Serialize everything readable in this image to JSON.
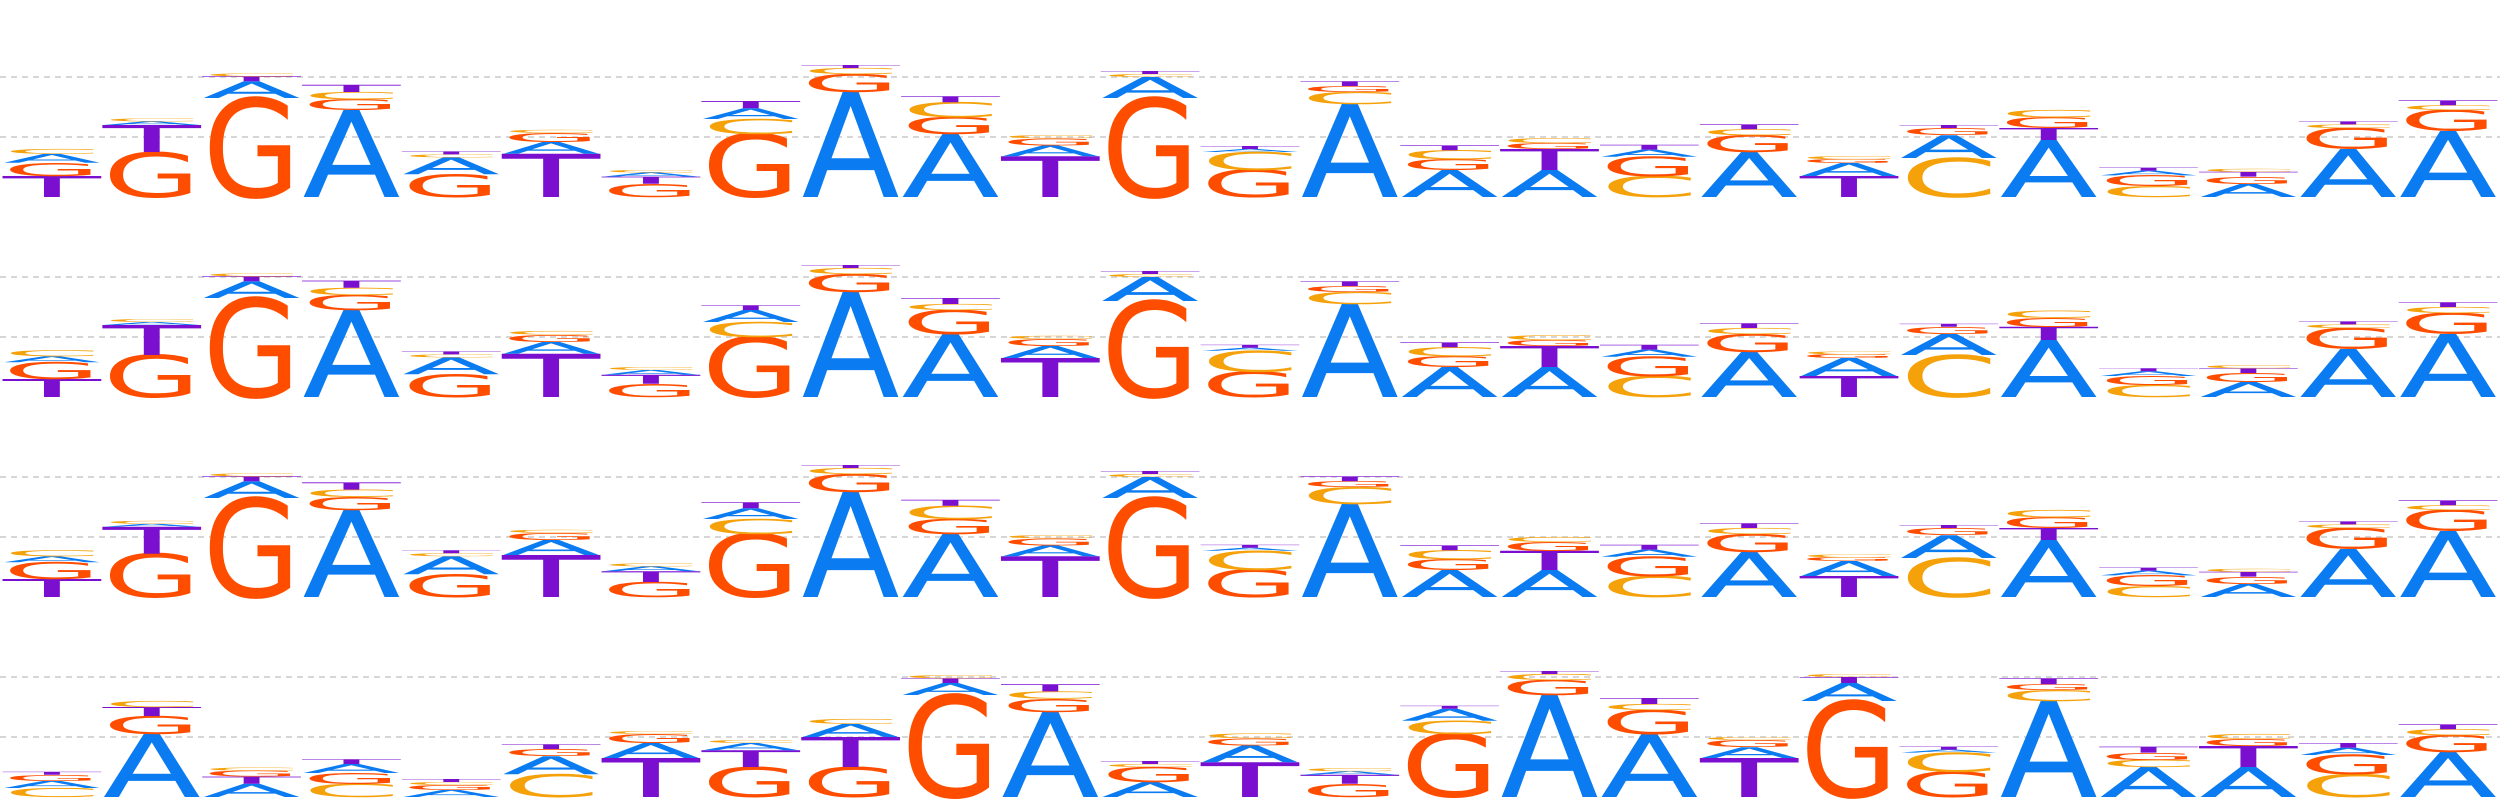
{
  "colors": {
    "A": "#0a7bf0",
    "C": "#f5a10a",
    "G": "#ff4d00",
    "T": "#7a0fd0",
    "grid": "#c8c8c8",
    "background": "#ffffff"
  },
  "chart_data": {
    "type": "sequence_logo",
    "alphabet": [
      "A",
      "C",
      "G",
      "T"
    ],
    "ylim": [
      0,
      2
    ],
    "grid": true,
    "rows": [
      {
        "name": "",
        "positions": [
          {
            "A": 0.15,
            "C": 0.08,
            "G": 0.22,
            "T": 0.35
          },
          {
            "A": 0.06,
            "C": 0.05,
            "G": 0.75,
            "T": 0.45
          },
          {
            "A": 0.28,
            "C": 0.05,
            "G": 1.65,
            "T": 0.08
          },
          {
            "A": 1.45,
            "C": 0.12,
            "G": 0.18,
            "T": 0.12
          },
          {
            "A": 0.28,
            "C": 0.05,
            "G": 0.38,
            "T": 0.05
          },
          {
            "A": 0.2,
            "C": 0.05,
            "G": 0.15,
            "T": 0.72
          },
          {
            "A": 0.07,
            "C": 0.04,
            "G": 0.22,
            "T": 0.12
          },
          {
            "A": 0.18,
            "C": 0.25,
            "G": 1.05,
            "T": 0.12
          },
          {
            "A": 1.75,
            "C": 0.1,
            "G": 0.3,
            "T": 0.05
          },
          {
            "A": 1.05,
            "C": 0.25,
            "G": 0.28,
            "T": 0.1
          },
          {
            "A": 0.18,
            "C": 0.05,
            "G": 0.12,
            "T": 0.68
          },
          {
            "A": 0.35,
            "C": 0.05,
            "G": 1.65,
            "T": 0.05
          },
          {
            "A": 0.05,
            "C": 0.3,
            "G": 0.45,
            "T": 0.05
          },
          {
            "A": 1.55,
            "C": 0.2,
            "G": 0.1,
            "T": 0.08
          },
          {
            "A": 0.45,
            "C": 0.15,
            "G": 0.18,
            "T": 0.08
          },
          {
            "A": 0.45,
            "C": 0.08,
            "G": 0.1,
            "T": 0.35
          },
          {
            "A": 0.12,
            "C": 0.35,
            "G": 0.32,
            "T": 0.08
          },
          {
            "A": 0.75,
            "C": 0.1,
            "G": 0.28,
            "T": 0.08
          },
          {
            "A": 0.22,
            "C": 0.05,
            "G": 0.06,
            "T": 0.35
          },
          {
            "A": 0.38,
            "C": 0.65,
            "G": 0.12,
            "T": 0.05
          },
          {
            "A": 0.95,
            "C": 0.12,
            "G": 0.18,
            "T": 0.2
          },
          {
            "A": 0.08,
            "C": 0.18,
            "G": 0.18,
            "T": 0.05
          },
          {
            "A": 0.22,
            "C": 0.05,
            "G": 0.12,
            "T": 0.08
          },
          {
            "A": 0.8,
            "C": 0.06,
            "G": 0.35,
            "T": 0.05
          },
          {
            "A": 1.1,
            "C": 0.08,
            "G": 0.35,
            "T": 0.08
          }
        ]
      },
      {
        "name": "",
        "positions": [
          {
            "A": 0.1,
            "C": 0.1,
            "G": 0.28,
            "T": 0.3
          },
          {
            "A": 0.05,
            "C": 0.05,
            "G": 0.7,
            "T": 0.5
          },
          {
            "A": 0.28,
            "C": 0.05,
            "G": 1.65,
            "T": 0.08
          },
          {
            "A": 1.45,
            "C": 0.12,
            "G": 0.25,
            "T": 0.12
          },
          {
            "A": 0.28,
            "C": 0.05,
            "G": 0.38,
            "T": 0.05
          },
          {
            "A": 0.2,
            "C": 0.06,
            "G": 0.12,
            "T": 0.72
          },
          {
            "A": 0.08,
            "C": 0.05,
            "G": 0.22,
            "T": 0.15
          },
          {
            "A": 0.2,
            "C": 0.25,
            "G": 1.0,
            "T": 0.08
          },
          {
            "A": 1.75,
            "C": 0.1,
            "G": 0.3,
            "T": 0.05
          },
          {
            "A": 1.05,
            "C": 0.1,
            "G": 0.4,
            "T": 0.1
          },
          {
            "A": 0.2,
            "C": 0.05,
            "G": 0.12,
            "T": 0.65
          },
          {
            "A": 0.4,
            "C": 0.05,
            "G": 1.6,
            "T": 0.05
          },
          {
            "A": 0.05,
            "C": 0.35,
            "G": 0.42,
            "T": 0.05
          },
          {
            "A": 1.55,
            "C": 0.2,
            "G": 0.1,
            "T": 0.08
          },
          {
            "A": 0.5,
            "C": 0.15,
            "G": 0.18,
            "T": 0.08
          },
          {
            "A": 0.5,
            "C": 0.08,
            "G": 0.1,
            "T": 0.35
          },
          {
            "A": 0.12,
            "C": 0.35,
            "G": 0.32,
            "T": 0.08
          },
          {
            "A": 0.75,
            "C": 0.1,
            "G": 0.3,
            "T": 0.08
          },
          {
            "A": 0.3,
            "C": 0.05,
            "G": 0.06,
            "T": 0.35
          },
          {
            "A": 0.35,
            "C": 0.7,
            "G": 0.12,
            "T": 0.05
          },
          {
            "A": 0.95,
            "C": 0.12,
            "G": 0.15,
            "T": 0.22
          },
          {
            "A": 0.08,
            "C": 0.2,
            "G": 0.15,
            "T": 0.05
          },
          {
            "A": 0.25,
            "C": 0.05,
            "G": 0.15,
            "T": 0.08
          },
          {
            "A": 0.8,
            "C": 0.06,
            "G": 0.35,
            "T": 0.05
          },
          {
            "A": 1.05,
            "C": 0.1,
            "G": 0.35,
            "T": 0.08
          }
        ]
      },
      {
        "name": "",
        "positions": [
          {
            "A": 0.1,
            "C": 0.1,
            "G": 0.28,
            "T": 0.3
          },
          {
            "A": 0.05,
            "C": 0.05,
            "G": 0.72,
            "T": 0.45
          },
          {
            "A": 0.28,
            "C": 0.05,
            "G": 1.65,
            "T": 0.08
          },
          {
            "A": 1.45,
            "C": 0.12,
            "G": 0.22,
            "T": 0.12
          },
          {
            "A": 0.3,
            "C": 0.05,
            "G": 0.38,
            "T": 0.05
          },
          {
            "A": 0.25,
            "C": 0.05,
            "G": 0.12,
            "T": 0.7
          },
          {
            "A": 0.08,
            "C": 0.05,
            "G": 0.25,
            "T": 0.18
          },
          {
            "A": 0.18,
            "C": 0.25,
            "G": 1.05,
            "T": 0.1
          },
          {
            "A": 1.75,
            "C": 0.1,
            "G": 0.3,
            "T": 0.05
          },
          {
            "A": 1.05,
            "C": 0.22,
            "G": 0.25,
            "T": 0.1
          },
          {
            "A": 0.18,
            "C": 0.05,
            "G": 0.12,
            "T": 0.68
          },
          {
            "A": 0.35,
            "C": 0.05,
            "G": 1.65,
            "T": 0.05
          },
          {
            "A": 0.05,
            "C": 0.32,
            "G": 0.45,
            "T": 0.05
          },
          {
            "A": 1.55,
            "C": 0.28,
            "G": 0.1,
            "T": 0.08
          },
          {
            "A": 0.45,
            "C": 0.15,
            "G": 0.18,
            "T": 0.08
          },
          {
            "A": 0.45,
            "C": 0.08,
            "G": 0.15,
            "T": 0.32
          },
          {
            "A": 0.12,
            "C": 0.35,
            "G": 0.32,
            "T": 0.08
          },
          {
            "A": 0.75,
            "C": 0.1,
            "G": 0.3,
            "T": 0.08
          },
          {
            "A": 0.25,
            "C": 0.05,
            "G": 0.06,
            "T": 0.35
          },
          {
            "A": 0.38,
            "C": 0.65,
            "G": 0.12,
            "T": 0.05
          },
          {
            "A": 0.95,
            "C": 0.12,
            "G": 0.18,
            "T": 0.2
          },
          {
            "A": 0.08,
            "C": 0.18,
            "G": 0.18,
            "T": 0.05
          },
          {
            "A": 0.22,
            "C": 0.05,
            "G": 0.12,
            "T": 0.08
          },
          {
            "A": 0.8,
            "C": 0.06,
            "G": 0.35,
            "T": 0.05
          },
          {
            "A": 1.1,
            "C": 0.08,
            "G": 0.35,
            "T": 0.08
          }
        ]
      },
      {
        "name": "",
        "positions": [
          {
            "A": 0.12,
            "C": 0.15,
            "G": 0.1,
            "T": 0.05
          },
          {
            "A": 1.05,
            "C": 0.1,
            "G": 0.3,
            "T": 0.15
          },
          {
            "A": 0.22,
            "C": 0.05,
            "G": 0.1,
            "T": 0.12
          },
          {
            "A": 0.15,
            "C": 0.22,
            "G": 0.18,
            "T": 0.08
          },
          {
            "A": 0.12,
            "C": 0.05,
            "G": 0.08,
            "T": 0.05
          },
          {
            "A": 0.3,
            "C": 0.38,
            "G": 0.12,
            "T": 0.08
          },
          {
            "A": 0.25,
            "C": 0.05,
            "G": 0.15,
            "T": 0.65
          },
          {
            "A": 0.12,
            "C": 0.05,
            "G": 0.5,
            "T": 0.28
          },
          {
            "A": 0.22,
            "C": 0.08,
            "G": 0.5,
            "T": 0.5
          },
          {
            "A": 0.2,
            "C": 0.05,
            "G": 1.7,
            "T": 0.08
          },
          {
            "A": 1.42,
            "C": 0.12,
            "G": 0.22,
            "T": 0.12
          },
          {
            "A": 0.25,
            "C": 0.05,
            "G": 0.25,
            "T": 0.05
          },
          {
            "A": 0.28,
            "C": 0.08,
            "G": 0.12,
            "T": 0.58
          },
          {
            "A": 0.06,
            "C": 0.05,
            "G": 0.22,
            "T": 0.15
          },
          {
            "A": 0.2,
            "C": 0.22,
            "G": 1.05,
            "T": 0.05
          },
          {
            "A": 1.7,
            "C": 0.1,
            "G": 0.25,
            "T": 0.05
          },
          {
            "A": 1.05,
            "C": 0.1,
            "G": 0.4,
            "T": 0.1
          },
          {
            "A": 0.18,
            "C": 0.05,
            "G": 0.12,
            "T": 0.65
          },
          {
            "A": 0.3,
            "C": 0.05,
            "G": 1.6,
            "T": 0.1
          },
          {
            "A": 0.05,
            "C": 0.32,
            "G": 0.42,
            "T": 0.05
          },
          {
            "A": 1.6,
            "C": 0.18,
            "G": 0.1,
            "T": 0.1
          },
          {
            "A": 0.5,
            "C": 0.12,
            "G": 0.12,
            "T": 0.1
          },
          {
            "A": 0.5,
            "C": 0.08,
            "G": 0.12,
            "T": 0.35
          },
          {
            "A": 0.12,
            "C": 0.38,
            "G": 0.32,
            "T": 0.08
          },
          {
            "A": 0.75,
            "C": 0.1,
            "G": 0.28,
            "T": 0.08
          }
        ]
      }
    ]
  }
}
